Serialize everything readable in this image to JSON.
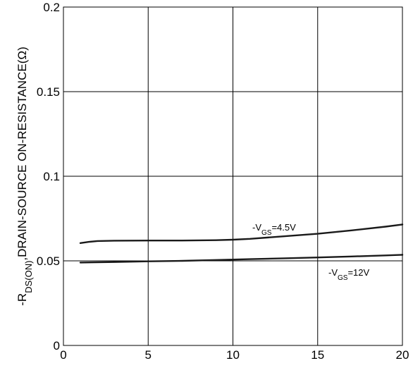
{
  "chart_data": {
    "type": "line",
    "title": "",
    "xlabel": "",
    "ylabel": {
      "prefix": "-R",
      "subscript": "DS(ON)",
      "suffix": ",DRAIN-SOURCE ON-RESISTANCE(Ω)"
    },
    "xlim": [
      0,
      20
    ],
    "ylim": [
      0,
      0.2
    ],
    "x_ticks": [
      "0",
      "5",
      "10",
      "15",
      "20"
    ],
    "y_ticks": [
      "0",
      "0.05",
      "0.1",
      "0.15",
      "0.2"
    ],
    "grid": true,
    "series": [
      {
        "name": "-VGS=4.5V",
        "label": {
          "prefix": "-V",
          "subscript": "GS",
          "suffix": "=4.5V"
        },
        "x": [
          1,
          1.5,
          2,
          3,
          5,
          7,
          9,
          10,
          11,
          13,
          15,
          17,
          19,
          20
        ],
        "y": [
          0.0605,
          0.0612,
          0.0617,
          0.0619,
          0.062,
          0.062,
          0.0622,
          0.0625,
          0.063,
          0.0645,
          0.066,
          0.068,
          0.0702,
          0.0715
        ]
      },
      {
        "name": "-VGS=12V",
        "label": {
          "prefix": "-V",
          "subscript": "GS",
          "suffix": "=12V"
        },
        "x": [
          1,
          3,
          5,
          7,
          9,
          11,
          13,
          15,
          17,
          19,
          20
        ],
        "y": [
          0.049,
          0.0493,
          0.0497,
          0.05,
          0.0505,
          0.051,
          0.0515,
          0.052,
          0.0526,
          0.0532,
          0.0536
        ]
      }
    ]
  }
}
